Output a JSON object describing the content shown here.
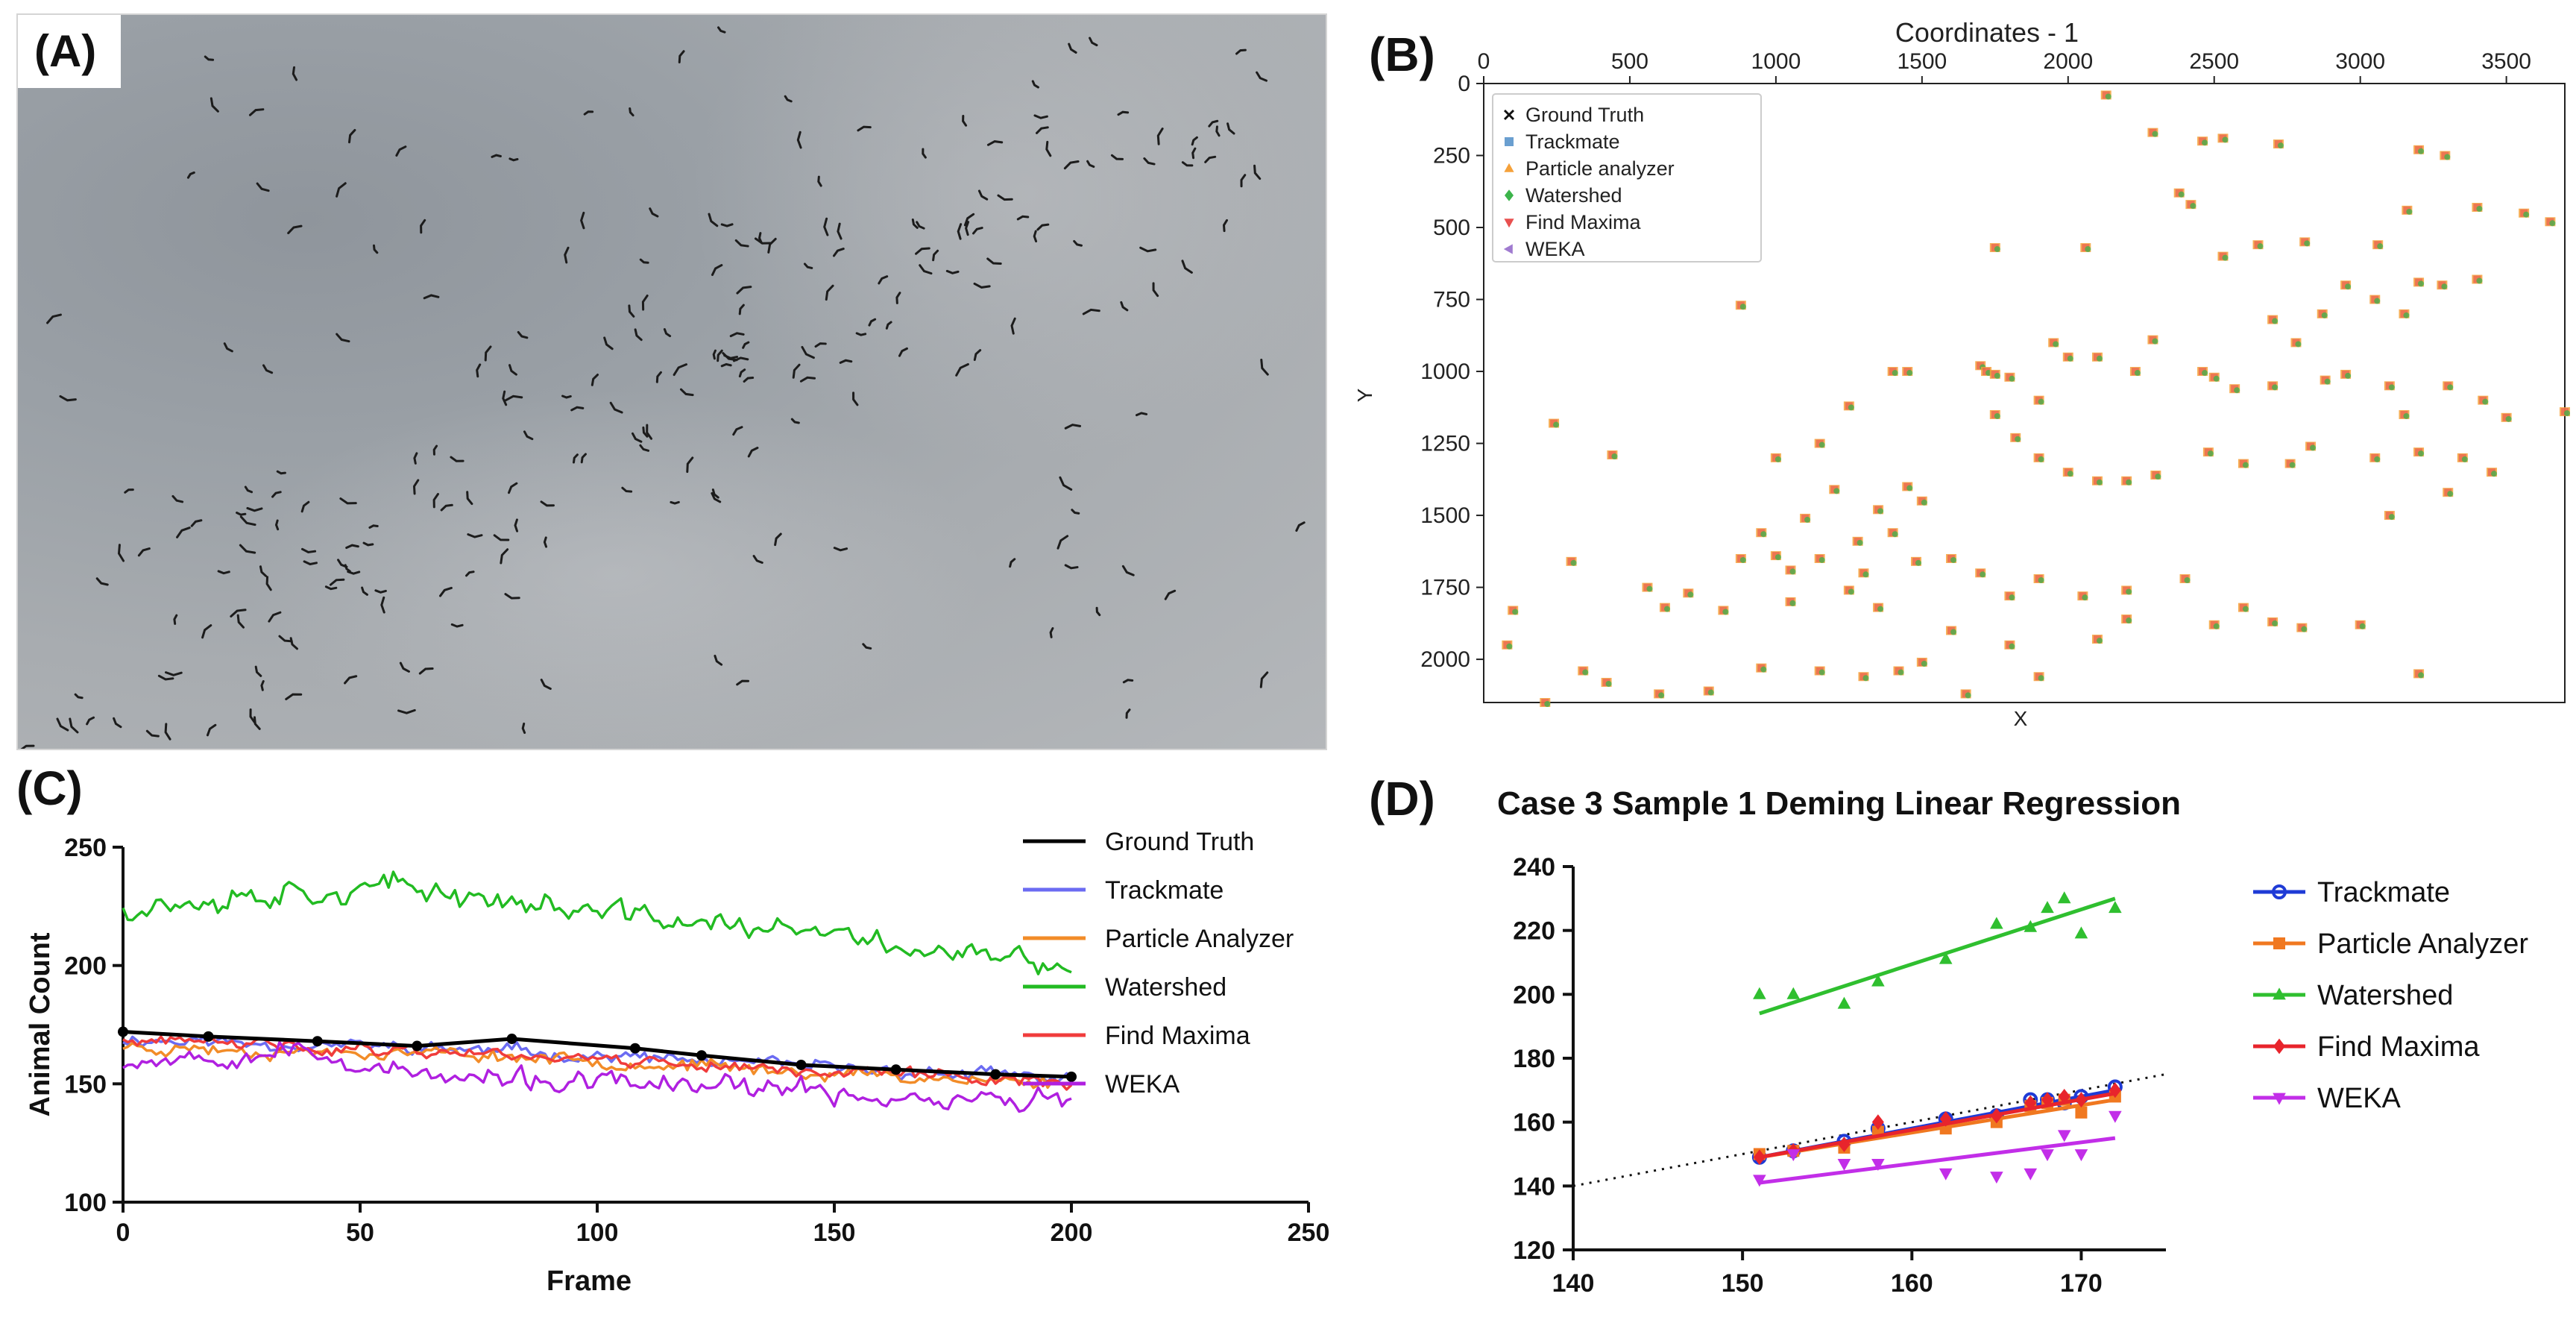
{
  "panels": {
    "a": "(A)",
    "b": "(B)",
    "c": "(C)",
    "d": "(D)"
  },
  "panel_a": {
    "content": "photograph-of-bird-flock",
    "colors": {
      "sky": "#a3a7ab",
      "bird": "#1c1c1c"
    }
  },
  "chart_data": [
    {
      "id": "B",
      "type": "scatter",
      "title": "Coordinates - 1",
      "xlabel": "X",
      "ylabel": "Y",
      "xlim": [
        0,
        3700
      ],
      "ylim": [
        2150,
        0
      ],
      "x_ticks": [
        0,
        500,
        1000,
        1500,
        2000,
        2500,
        3000,
        3500
      ],
      "y_ticks": [
        0,
        250,
        500,
        750,
        1000,
        1250,
        1500,
        1750,
        2000
      ],
      "legend": [
        "Ground Truth",
        "Trackmate",
        "Particle analyzer",
        "Watershed",
        "Find Maxima",
        "WEKA"
      ],
      "legend_markers": [
        "x",
        "square",
        "triangle-up",
        "diamond",
        "triangle-down",
        "triangle-left"
      ],
      "legend_colors": [
        "#111111",
        "#6a9fd0",
        "#f5a13a",
        "#3cb44b",
        "#e8504f",
        "#a07bd0"
      ],
      "legend_position": "top-left",
      "points": [
        [
          2130,
          40
        ],
        [
          2460,
          200
        ],
        [
          2530,
          190
        ],
        [
          2720,
          210
        ],
        [
          3200,
          230
        ],
        [
          3290,
          250
        ],
        [
          2290,
          170
        ],
        [
          2380,
          380
        ],
        [
          2420,
          420
        ],
        [
          2060,
          570
        ],
        [
          1750,
          570
        ],
        [
          2530,
          600
        ],
        [
          2650,
          560
        ],
        [
          2810,
          550
        ],
        [
          3060,
          560
        ],
        [
          3160,
          440
        ],
        [
          3400,
          430
        ],
        [
          3560,
          450
        ],
        [
          3650,
          480
        ],
        [
          3400,
          680
        ],
        [
          3200,
          690
        ],
        [
          3280,
          700
        ],
        [
          3150,
          800
        ],
        [
          3050,
          750
        ],
        [
          2950,
          700
        ],
        [
          2870,
          800
        ],
        [
          2700,
          820
        ],
        [
          2780,
          900
        ],
        [
          880,
          770
        ],
        [
          1700,
          980
        ],
        [
          1720,
          1000
        ],
        [
          1750,
          1010
        ],
        [
          1800,
          1020
        ],
        [
          1900,
          1100
        ],
        [
          1950,
          900
        ],
        [
          2000,
          950
        ],
        [
          2100,
          950
        ],
        [
          2230,
          1000
        ],
        [
          2290,
          890
        ],
        [
          2460,
          1000
        ],
        [
          2500,
          1020
        ],
        [
          2570,
          1060
        ],
        [
          2700,
          1050
        ],
        [
          2880,
          1030
        ],
        [
          2950,
          1010
        ],
        [
          3100,
          1050
        ],
        [
          3150,
          1150
        ],
        [
          3300,
          1050
        ],
        [
          3420,
          1100
        ],
        [
          3500,
          1160
        ],
        [
          3700,
          1140
        ],
        [
          1400,
          1000
        ],
        [
          1450,
          1000
        ],
        [
          1250,
          1120
        ],
        [
          1150,
          1250
        ],
        [
          1000,
          1300
        ],
        [
          1750,
          1150
        ],
        [
          1820,
          1230
        ],
        [
          1900,
          1300
        ],
        [
          2000,
          1350
        ],
        [
          2100,
          1380
        ],
        [
          2200,
          1380
        ],
        [
          2300,
          1360
        ],
        [
          2480,
          1280
        ],
        [
          2600,
          1320
        ],
        [
          2760,
          1320
        ],
        [
          2830,
          1260
        ],
        [
          3050,
          1300
        ],
        [
          3200,
          1280
        ],
        [
          3350,
          1300
        ],
        [
          3450,
          1350
        ],
        [
          3300,
          1420
        ],
        [
          3100,
          1500
        ],
        [
          240,
          1180
        ],
        [
          440,
          1290
        ],
        [
          1450,
          1400
        ],
        [
          1500,
          1450
        ],
        [
          1200,
          1410
        ],
        [
          1350,
          1480
        ],
        [
          1400,
          1560
        ],
        [
          1280,
          1590
        ],
        [
          1100,
          1510
        ],
        [
          950,
          1560
        ],
        [
          880,
          1650
        ],
        [
          1000,
          1640
        ],
        [
          1050,
          1690
        ],
        [
          1150,
          1650
        ],
        [
          1300,
          1700
        ],
        [
          1480,
          1660
        ],
        [
          1600,
          1650
        ],
        [
          1700,
          1700
        ],
        [
          1800,
          1780
        ],
        [
          1900,
          1720
        ],
        [
          2050,
          1780
        ],
        [
          2200,
          1760
        ],
        [
          2400,
          1720
        ],
        [
          2600,
          1820
        ],
        [
          2700,
          1870
        ],
        [
          2800,
          1890
        ],
        [
          3000,
          1880
        ],
        [
          3200,
          2050
        ],
        [
          100,
          1830
        ],
        [
          300,
          1660
        ],
        [
          560,
          1750
        ],
        [
          700,
          1770
        ],
        [
          820,
          1830
        ],
        [
          620,
          1820
        ],
        [
          1050,
          1800
        ],
        [
          1250,
          1760
        ],
        [
          1350,
          1820
        ],
        [
          1600,
          1900
        ],
        [
          1800,
          1950
        ],
        [
          2100,
          1930
        ],
        [
          2200,
          1860
        ],
        [
          2500,
          1880
        ],
        [
          80,
          1950
        ],
        [
          340,
          2040
        ],
        [
          420,
          2080
        ],
        [
          600,
          2120
        ],
        [
          770,
          2110
        ],
        [
          950,
          2030
        ],
        [
          1150,
          2040
        ],
        [
          1300,
          2060
        ],
        [
          1420,
          2040
        ],
        [
          1500,
          2010
        ],
        [
          1650,
          2120
        ],
        [
          210,
          2150
        ],
        [
          1900,
          2060
        ]
      ]
    },
    {
      "id": "C",
      "type": "line",
      "xlabel": "Frame",
      "ylabel": "Animal Count",
      "xlim": [
        0,
        250
      ],
      "ylim": [
        100,
        250
      ],
      "x_ticks": [
        0,
        50,
        100,
        150,
        200,
        250
      ],
      "y_ticks": [
        100,
        150,
        200,
        250
      ],
      "legend_position": "right",
      "ground_truth": {
        "name": "Ground Truth",
        "color": "#000000",
        "x": [
          0,
          18,
          41,
          62,
          82,
          108,
          122,
          143,
          163,
          184,
          200
        ],
        "y": [
          172,
          170,
          168,
          166,
          169,
          165,
          162,
          158,
          156,
          154,
          153
        ]
      },
      "series": [
        {
          "name": "Trackmate",
          "color": "#6b6bf2",
          "base": [
            169,
            167,
            165,
            162,
            158,
            155,
            152
          ],
          "noise": 3,
          "seed": 11
        },
        {
          "name": "Particle Analyzer",
          "color": "#f28c28",
          "base": [
            166,
            164,
            163,
            160,
            156,
            153,
            150
          ],
          "noise": 3,
          "seed": 23
        },
        {
          "name": "Watershed",
          "color": "#22bb22",
          "base": [
            225,
            232,
            232,
            222,
            216,
            208,
            198
          ],
          "noise": 6,
          "seed": 37
        },
        {
          "name": "Find Maxima",
          "color": "#f03c3c",
          "base": [
            168,
            166,
            164,
            161,
            157,
            154,
            151
          ],
          "noise": 3,
          "seed": 41
        },
        {
          "name": "WEKA",
          "color": "#b020e0",
          "base": [
            160,
            165,
            152,
            150,
            148,
            144,
            143
          ],
          "noise": 5,
          "seed": 53
        }
      ]
    },
    {
      "id": "D",
      "type": "scatter",
      "title": "Case 3 Sample 1 Deming Linear Regression",
      "xlabel": "",
      "ylabel": "",
      "xlim": [
        140,
        175
      ],
      "ylim": [
        120,
        240
      ],
      "x_ticks": [
        140,
        150,
        160,
        170
      ],
      "y_ticks": [
        120,
        140,
        160,
        180,
        200,
        220,
        240
      ],
      "legend_position": "right",
      "identity_line": {
        "x": [
          140,
          175
        ],
        "y": [
          140,
          175
        ]
      },
      "series": [
        {
          "name": "Trackmate",
          "color": "#1f3bd6",
          "marker": "circle",
          "x": [
            151,
            153,
            156,
            158,
            162,
            165,
            167,
            168,
            169,
            170,
            172
          ],
          "y": [
            149,
            151,
            154,
            158,
            161,
            162,
            167,
            167,
            166,
            168,
            171
          ],
          "fit": {
            "x": [
              151,
              172
            ],
            "y": [
              149,
              170
            ]
          }
        },
        {
          "name": "Particle Analyzer",
          "color": "#f07820",
          "marker": "square",
          "x": [
            151,
            153,
            156,
            158,
            162,
            165,
            167,
            168,
            169,
            170,
            172
          ],
          "y": [
            150,
            151,
            152,
            157,
            158,
            160,
            165,
            166,
            167,
            163,
            168
          ],
          "fit": {
            "x": [
              151,
              172
            ],
            "y": [
              149,
              167
            ]
          }
        },
        {
          "name": "Watershed",
          "color": "#2fbf2f",
          "marker": "triangle-up",
          "x": [
            151,
            153,
            156,
            158,
            162,
            165,
            167,
            168,
            169,
            170,
            172
          ],
          "y": [
            200,
            200,
            197,
            204,
            211,
            222,
            221,
            227,
            230,
            219,
            227
          ],
          "fit": {
            "x": [
              151,
              172
            ],
            "y": [
              194,
              230
            ]
          }
        },
        {
          "name": "Find Maxima",
          "color": "#e8242c",
          "marker": "diamond",
          "x": [
            151,
            153,
            156,
            158,
            162,
            165,
            167,
            168,
            169,
            170,
            172
          ],
          "y": [
            149,
            151,
            153,
            160,
            161,
            162,
            166,
            167,
            168,
            167,
            170
          ],
          "fit": {
            "x": [
              151,
              172
            ],
            "y": [
              149,
              169
            ]
          }
        },
        {
          "name": "WEKA",
          "color": "#c22ee8",
          "marker": "triangle-down",
          "x": [
            151,
            153,
            156,
            158,
            162,
            165,
            167,
            168,
            169,
            170,
            172
          ],
          "y": [
            142,
            150,
            147,
            147,
            144,
            143,
            144,
            150,
            156,
            150,
            162
          ],
          "fit": {
            "x": [
              151,
              172
            ],
            "y": [
              141,
              155
            ]
          }
        }
      ]
    }
  ]
}
